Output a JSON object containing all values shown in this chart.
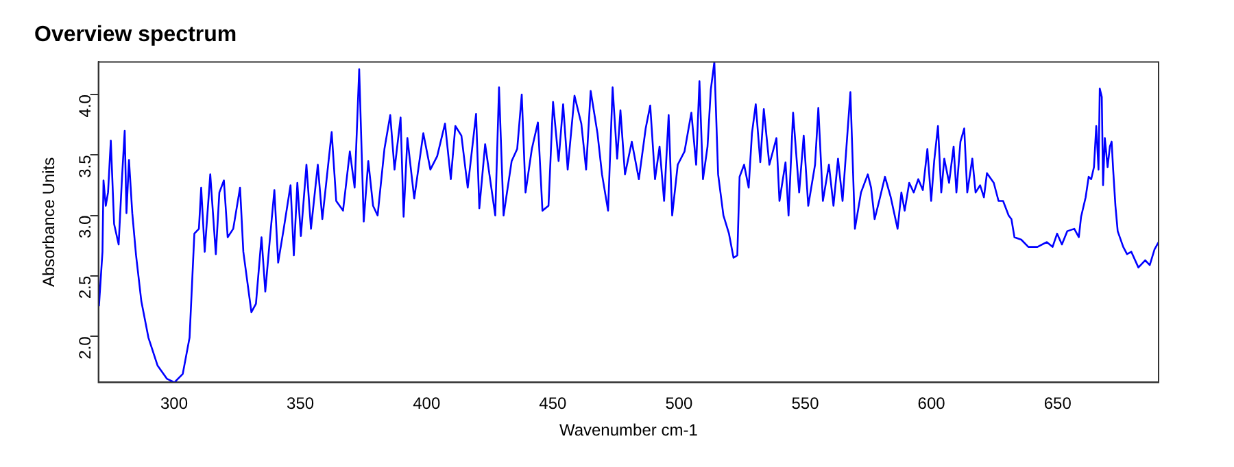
{
  "chart_data": {
    "type": "line",
    "title": "Overview spectrum",
    "xlabel": "Wavenumber cm-1",
    "ylabel": "Absorbance Units",
    "marker": "none",
    "xlim": [
      270,
      690
    ],
    "ylim": [
      1.62,
      4.27
    ],
    "xticks": [
      300,
      350,
      400,
      450,
      500,
      550,
      600,
      650
    ],
    "yticks": [
      {
        "value": 2,
        "label": "2.0"
      },
      {
        "value": 2.5,
        "label": "2.5"
      },
      {
        "value": 3,
        "label": "3.0"
      },
      {
        "value": 3.5,
        "label": "3.5"
      },
      {
        "value": 4,
        "label": "4.0"
      }
    ],
    "x": [
      270.2,
      271.6,
      272,
      272.9,
      273.8,
      274.9,
      276.2,
      278,
      279.3,
      280.4,
      281.1,
      282.1,
      283.4,
      284.9,
      287,
      289.8,
      293.4,
      297.1,
      300.1,
      303.4,
      306.1,
      308,
      309.8,
      310.7,
      312.1,
      314.3,
      316.5,
      317.9,
      319.7,
      321.2,
      323.4,
      326.1,
      327.4,
      330.6,
      332.4,
      334.6,
      336.1,
      337.9,
      339.7,
      341.2,
      343.4,
      346.1,
      347.4,
      348.8,
      350.2,
      352.4,
      354.2,
      356.9,
      358.7,
      362.4,
      364.2,
      366.9,
      369.6,
      371.5,
      373.3,
      375.1,
      376.9,
      378.8,
      380.6,
      383.3,
      385.6,
      387.3,
      389.7,
      390.9,
      392.4,
      395.1,
      398.7,
      401.5,
      404.2,
      407.3,
      409.6,
      411.4,
      413.8,
      416.3,
      419.6,
      420.9,
      423.2,
      427.2,
      428.7,
      430.5,
      433.7,
      435.9,
      437.7,
      439.2,
      441.7,
      444.1,
      445.9,
      448.3,
      450.1,
      452.3,
      454.1,
      455.9,
      458.6,
      461.3,
      463.2,
      465,
      467.7,
      469.5,
      471.9,
      473.7,
      475.5,
      476.8,
      478.6,
      481.3,
      484.1,
      486.8,
      488.6,
      490.5,
      492.3,
      494.1,
      495.9,
      497.3,
      499.5,
      502.2,
      504.9,
      506.8,
      508.1,
      509.5,
      511.3,
      512.6,
      514,
      515.5,
      517.6,
      519.8,
      521.6,
      523.1,
      524,
      525.8,
      527.6,
      528.9,
      530.4,
      532.2,
      533.6,
      535.8,
      538.6,
      539.8,
      542.2,
      543.4,
      545.2,
      547.6,
      549.4,
      551.2,
      553.9,
      555.2,
      557,
      559.4,
      561.2,
      563,
      564.8,
      567.9,
      569.7,
      572.1,
      574.8,
      576.1,
      577.5,
      579.3,
      581.6,
      583.9,
      586.6,
      588.1,
      589.4,
      591.2,
      593,
      594.8,
      596.6,
      598.4,
      599.9,
      601.1,
      602.6,
      603.9,
      605.1,
      607,
      608.8,
      609.9,
      611.5,
      613,
      614.2,
      616.2,
      617.5,
      619.3,
      620.8,
      622,
      624.7,
      626.6,
      628.4,
      630.6,
      631.7,
      632.9,
      635.6,
      638.4,
      642,
      645.7,
      648,
      649.8,
      651.7,
      653.8,
      656.6,
      658.4,
      659.3,
      661.1,
      662.3,
      663.3,
      664.4,
      665.3,
      666.2,
      666.7,
      667.5,
      668,
      668.7,
      669.8,
      670.7,
      671.4,
      672,
      672.9,
      673.8,
      676,
      677.5,
      679.2,
      682,
      684.7,
      686.5,
      688.4,
      690
    ],
    "series": [
      {
        "color": "#0000ff",
        "values": [
          2.25,
          2.7,
          3.29,
          3.08,
          3.19,
          3.62,
          2.93,
          2.76,
          3.3,
          3.7,
          3.02,
          3.46,
          3.02,
          2.67,
          2.29,
          1.99,
          1.76,
          1.65,
          1.62,
          1.69,
          1.99,
          2.85,
          2.89,
          3.23,
          2.7,
          3.34,
          2.68,
          3.19,
          3.29,
          2.82,
          2.89,
          3.23,
          2.7,
          2.2,
          2.27,
          2.82,
          2.37,
          2.8,
          3.21,
          2.61,
          2.89,
          3.25,
          2.67,
          3.27,
          2.83,
          3.42,
          2.89,
          3.42,
          2.97,
          3.69,
          3.12,
          3.04,
          3.53,
          3.23,
          4.21,
          2.95,
          3.45,
          3.08,
          3,
          3.55,
          3.83,
          3.38,
          3.81,
          2.99,
          3.64,
          3.14,
          3.68,
          3.38,
          3.49,
          3.76,
          3.3,
          3.74,
          3.66,
          3.23,
          3.84,
          3.06,
          3.59,
          3,
          4.06,
          3,
          3.45,
          3.55,
          4,
          3.19,
          3.55,
          3.77,
          3.04,
          3.08,
          3.94,
          3.45,
          3.92,
          3.38,
          3.99,
          3.76,
          3.38,
          4.03,
          3.68,
          3.34,
          3.04,
          4.06,
          3.47,
          3.87,
          3.34,
          3.61,
          3.3,
          3.72,
          3.91,
          3.3,
          3.57,
          3.12,
          3.83,
          3,
          3.42,
          3.53,
          3.85,
          3.42,
          4.11,
          3.3,
          3.57,
          4.04,
          4.27,
          3.34,
          3,
          2.85,
          2.65,
          2.67,
          3.32,
          3.42,
          3.23,
          3.68,
          3.92,
          3.44,
          3.88,
          3.42,
          3.64,
          3.12,
          3.44,
          3,
          3.85,
          3.19,
          3.66,
          3.08,
          3.42,
          3.89,
          3.12,
          3.42,
          3.08,
          3.47,
          3.12,
          4.02,
          2.89,
          3.19,
          3.34,
          3.23,
          2.97,
          3.12,
          3.32,
          3.15,
          2.89,
          3.19,
          3.04,
          3.27,
          3.19,
          3.3,
          3.21,
          3.55,
          3.12,
          3.45,
          3.74,
          3.19,
          3.47,
          3.27,
          3.57,
          3.19,
          3.61,
          3.72,
          3.19,
          3.47,
          3.19,
          3.25,
          3.15,
          3.35,
          3.27,
          3.12,
          3.12,
          3,
          2.97,
          2.82,
          2.8,
          2.74,
          2.74,
          2.78,
          2.74,
          2.85,
          2.76,
          2.87,
          2.89,
          2.82,
          2.99,
          3.15,
          3.32,
          3.3,
          3.4,
          3.74,
          3.38,
          4.05,
          3.98,
          3.25,
          3.64,
          3.4,
          3.57,
          3.61,
          3.38,
          3.08,
          2.87,
          2.74,
          2.68,
          2.7,
          2.57,
          2.63,
          2.59,
          2.72,
          2.78
        ]
      }
    ]
  }
}
